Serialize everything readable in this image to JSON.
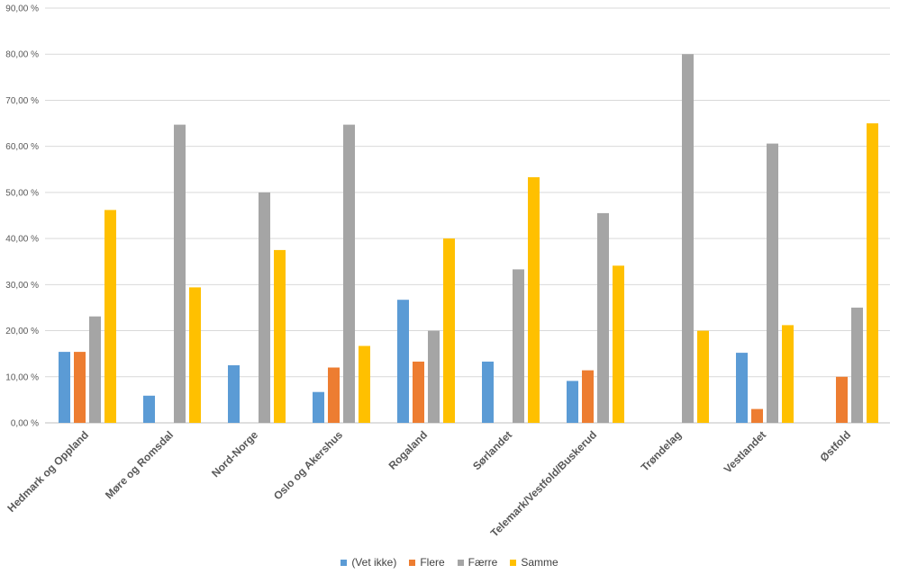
{
  "chart_data": {
    "type": "bar",
    "categories": [
      "Hedmark og Oppland",
      "Møre og Romsdal",
      "Nord-Norge",
      "Oslo og Akershus",
      "Rogaland",
      "Sørlandet",
      "Telemark/Vestfold/Buskerud",
      "Trøndelag",
      "Vestlandet",
      "Østfold"
    ],
    "series": [
      {
        "name": "(Vet ikke)",
        "color": "#5B9BD5",
        "values": [
          15.4,
          5.9,
          12.5,
          6.7,
          26.7,
          13.3,
          9.1,
          0,
          15.2,
          0
        ]
      },
      {
        "name": "Flere",
        "color": "#ED7D31",
        "values": [
          15.4,
          0,
          0,
          12.0,
          13.3,
          0,
          11.4,
          0,
          3.0,
          10.0
        ]
      },
      {
        "name": "Færre",
        "color": "#A5A5A5",
        "values": [
          23.1,
          64.7,
          50.0,
          64.7,
          20.0,
          33.3,
          45.5,
          80.0,
          60.6,
          25.0
        ]
      },
      {
        "name": "Samme",
        "color": "#FFC000",
        "values": [
          46.2,
          29.4,
          37.5,
          16.7,
          40.0,
          53.3,
          34.1,
          20.0,
          21.2,
          65.0
        ]
      }
    ],
    "yticks": [
      "0,00 %",
      "10,00 %",
      "20,00 %",
      "30,00 %",
      "40,00 %",
      "50,00 %",
      "60,00 %",
      "70,00 %",
      "80,00 %",
      "90,00 %"
    ],
    "ylim": [
      0,
      90
    ],
    "grid": true,
    "legend_position": "bottom"
  }
}
